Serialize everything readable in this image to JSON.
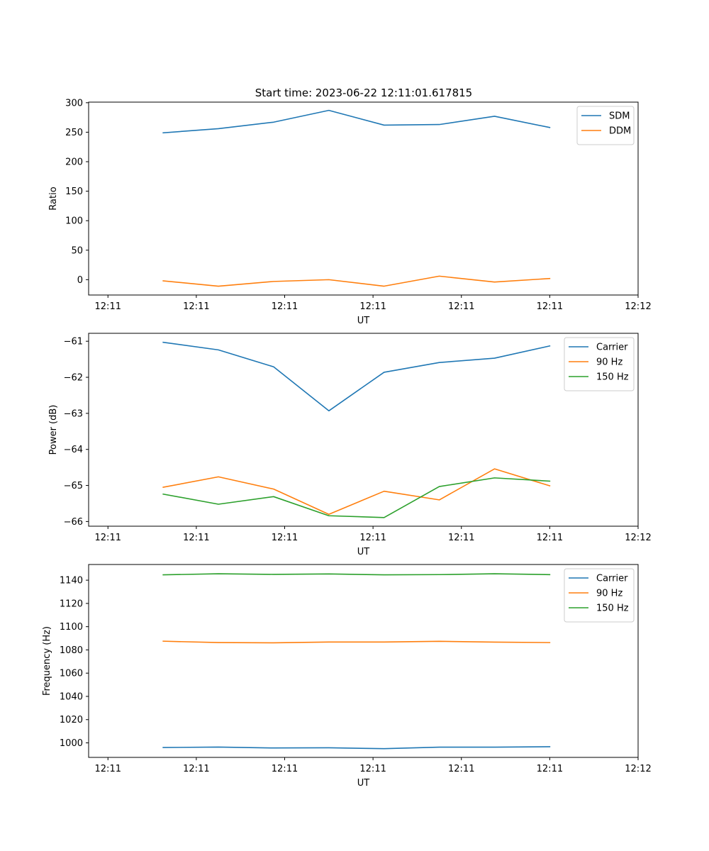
{
  "figure": {
    "title": "Start time: 2023-06-22 12:11:01.617815"
  },
  "colors": {
    "blue": "#1f77b4",
    "orange": "#ff7f0e",
    "green": "#2ca02c"
  },
  "chart_data": [
    {
      "type": "line",
      "title": "Start time: 2023-06-22 12:11:01.617815",
      "xlabel": "UT",
      "ylabel": "Ratio",
      "x": [
        1,
        2,
        3,
        4,
        5,
        6,
        7,
        8
      ],
      "x_ticks": [
        0,
        1.6,
        3.2,
        4.8,
        6.4,
        8,
        9.6
      ],
      "x_tick_labels": [
        "12:11",
        "12:11",
        "12:11",
        "12:11",
        "12:11",
        "12:11",
        "12:12"
      ],
      "xlim": [
        -0.35,
        9.6
      ],
      "ylim": [
        -26,
        301
      ],
      "y_ticks": [
        0,
        50,
        100,
        150,
        200,
        250,
        300
      ],
      "legend_position": "top-right",
      "series": [
        {
          "name": "SDM",
          "color": "#1f77b4",
          "values": [
            249,
            256,
            267,
            287,
            262,
            263,
            277,
            258
          ]
        },
        {
          "name": "DDM",
          "color": "#ff7f0e",
          "values": [
            -2,
            -11,
            -3,
            0,
            -11,
            6,
            -4,
            2
          ]
        }
      ]
    },
    {
      "type": "line",
      "xlabel": "UT",
      "ylabel": "Power (dB)",
      "x": [
        1,
        2,
        3,
        4,
        5,
        6,
        7,
        8
      ],
      "x_ticks": [
        0,
        1.6,
        3.2,
        4.8,
        6.4,
        8,
        9.6
      ],
      "x_tick_labels": [
        "12:11",
        "12:11",
        "12:11",
        "12:11",
        "12:11",
        "12:11",
        "12:12"
      ],
      "xlim": [
        -0.35,
        9.6
      ],
      "ylim": [
        -66.13,
        -60.78
      ],
      "y_ticks": [
        -66,
        -65,
        -64,
        -63,
        -62,
        -61
      ],
      "legend_position": "top-right",
      "series": [
        {
          "name": "Carrier",
          "color": "#1f77b4",
          "values": [
            -61.03,
            -61.24,
            -61.71,
            -62.93,
            -61.86,
            -61.59,
            -61.47,
            -61.13
          ]
        },
        {
          "name": "90 Hz",
          "color": "#ff7f0e",
          "values": [
            -65.05,
            -64.76,
            -65.1,
            -65.8,
            -65.16,
            -65.4,
            -64.54,
            -65.01
          ]
        },
        {
          "name": "150 Hz",
          "color": "#2ca02c",
          "values": [
            -65.24,
            -65.52,
            -65.31,
            -65.84,
            -65.89,
            -65.03,
            -64.79,
            -64.88
          ]
        }
      ]
    },
    {
      "type": "line",
      "xlabel": "UT",
      "ylabel": "Frequency (Hz)",
      "x": [
        1,
        2,
        3,
        4,
        5,
        6,
        7,
        8
      ],
      "x_ticks": [
        0,
        1.6,
        3.2,
        4.8,
        6.4,
        8,
        9.6
      ],
      "x_tick_labels": [
        "12:11",
        "12:11",
        "12:11",
        "12:11",
        "12:11",
        "12:11",
        "12:12"
      ],
      "xlim": [
        -0.35,
        9.6
      ],
      "ylim": [
        987.5,
        1153.5
      ],
      "y_ticks": [
        1000,
        1020,
        1040,
        1060,
        1080,
        1100,
        1120,
        1140
      ],
      "legend_position": "top-right",
      "series": [
        {
          "name": "Carrier",
          "color": "#1f77b4",
          "values": [
            996.0,
            996.4,
            995.6,
            995.8,
            995.0,
            996.3,
            996.3,
            996.7
          ]
        },
        {
          "name": "90 Hz",
          "color": "#ff7f0e",
          "values": [
            1087.5,
            1086.3,
            1086.1,
            1086.8,
            1086.8,
            1087.4,
            1086.7,
            1086.3
          ]
        },
        {
          "name": "150 Hz",
          "color": "#2ca02c",
          "values": [
            1144.6,
            1145.5,
            1145.0,
            1145.4,
            1144.6,
            1144.8,
            1145.5,
            1144.8
          ]
        }
      ]
    }
  ]
}
